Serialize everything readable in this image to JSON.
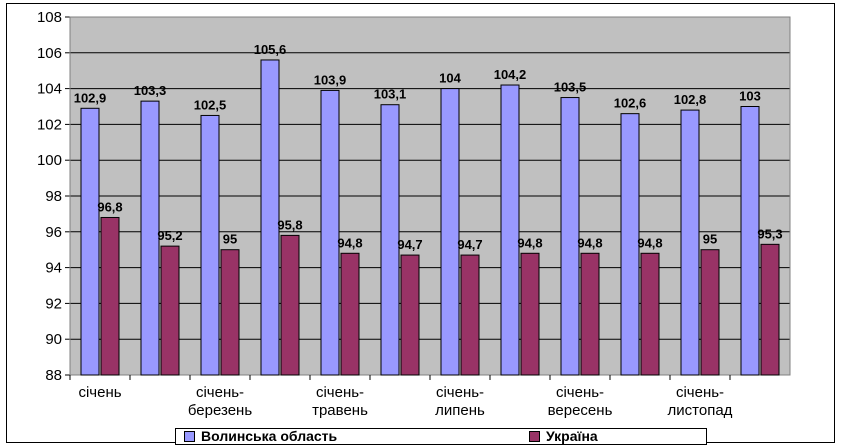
{
  "chart_data": {
    "type": "bar",
    "categories": [
      "січень",
      "",
      "січень-\nберезень",
      "",
      "січень-\nтравень",
      "",
      "січень-\nлипень",
      "",
      "січень-\nвересень",
      "",
      "січень-\nлистопад",
      ""
    ],
    "series": [
      {
        "name": "Волинська область",
        "color": "#9999ff",
        "values": [
          102.9,
          103.3,
          102.5,
          105.6,
          103.9,
          103.1,
          104,
          104.2,
          103.5,
          102.6,
          102.8,
          103
        ],
        "labels": [
          "102,9",
          "103,3",
          "102,5",
          "105,6",
          "103,9",
          "103,1",
          "104",
          "104,2",
          "103,5",
          "102,6",
          "102,8",
          "103"
        ]
      },
      {
        "name": "Україна",
        "color": "#993366",
        "values": [
          96.8,
          95.2,
          95,
          95.8,
          94.8,
          94.7,
          94.7,
          94.8,
          94.8,
          94.8,
          95,
          95.3
        ],
        "labels": [
          "96,8",
          "95,2",
          "95",
          "95,8",
          "94,8",
          "94,7",
          "94,7",
          "94,8",
          "94,8",
          "94,8",
          "95",
          "95,3"
        ]
      }
    ],
    "ylim": [
      88,
      108
    ],
    "yticks": [
      88,
      90,
      92,
      94,
      96,
      98,
      100,
      102,
      104,
      106,
      108
    ],
    "grid": true,
    "plot_background": "#c0c0c0",
    "legend_position": "bottom",
    "title": "",
    "xlabel": "",
    "ylabel": ""
  }
}
